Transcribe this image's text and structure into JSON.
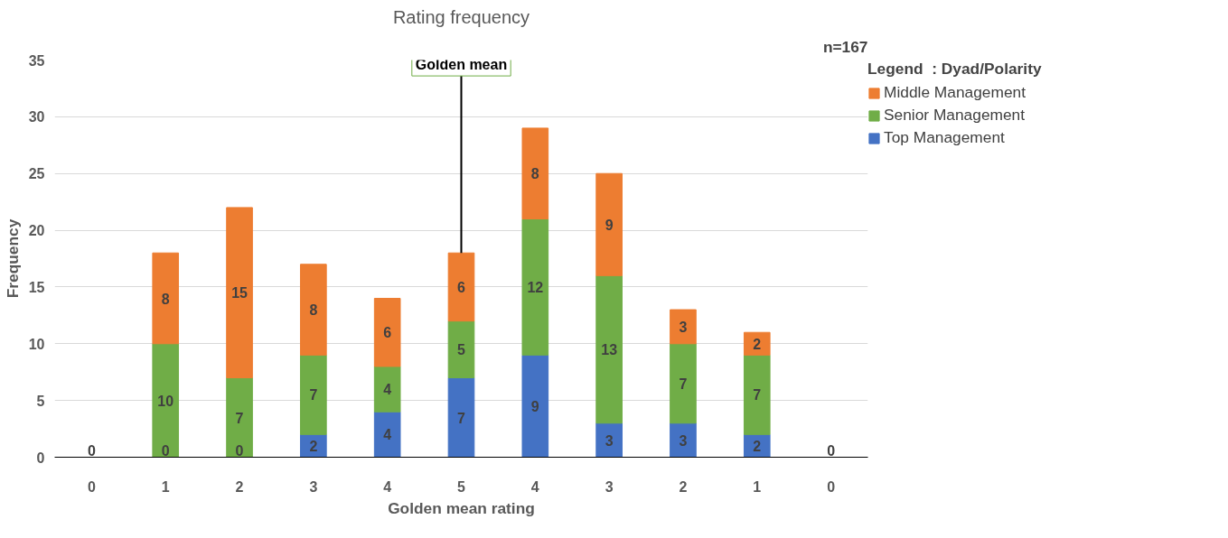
{
  "chart_data": {
    "type": "bar",
    "title": "Rating frequency",
    "xlabel": "Golden mean rating",
    "ylabel": "Frequency",
    "legend_title": "Legend  : Dyad/Polarity",
    "categories": [
      "0",
      "1",
      "2",
      "3",
      "4",
      "5",
      "4",
      "3",
      "2",
      "1",
      "0"
    ],
    "series": [
      {
        "name": "Top Management",
        "color": "#4472c4",
        "values": [
          0,
          0,
          0,
          2,
          4,
          7,
          9,
          3,
          3,
          2,
          0
        ],
        "value_labels": [
          "0",
          "0",
          "0",
          "2",
          "4",
          "7",
          "9",
          "3",
          "3",
          "2",
          "0"
        ]
      },
      {
        "name": "Senior Management",
        "color": "#70ad47",
        "values": [
          0,
          10,
          7,
          7,
          4,
          5,
          12,
          13,
          7,
          7,
          0
        ],
        "value_labels": [
          null,
          "10",
          "7",
          "7",
          "4",
          "5",
          "12",
          "13",
          "7",
          "7",
          null
        ]
      },
      {
        "name": "Middle Management",
        "color": "#ed7d31",
        "values": [
          0,
          8,
          15,
          8,
          6,
          6,
          8,
          9,
          3,
          2,
          0
        ],
        "value_labels": [
          null,
          "8",
          "15",
          "8",
          "6",
          "6",
          "8",
          "9",
          "3",
          "2",
          null
        ]
      }
    ],
    "stacked": true,
    "ylim": [
      0,
      35
    ],
    "yticks": [
      0,
      5,
      10,
      15,
      20,
      25,
      30,
      35
    ],
    "grid": "y",
    "legend": "right",
    "annotations": [
      "n=167",
      {
        "text": "Golden mean",
        "x": "5",
        "y": 18
      }
    ]
  }
}
